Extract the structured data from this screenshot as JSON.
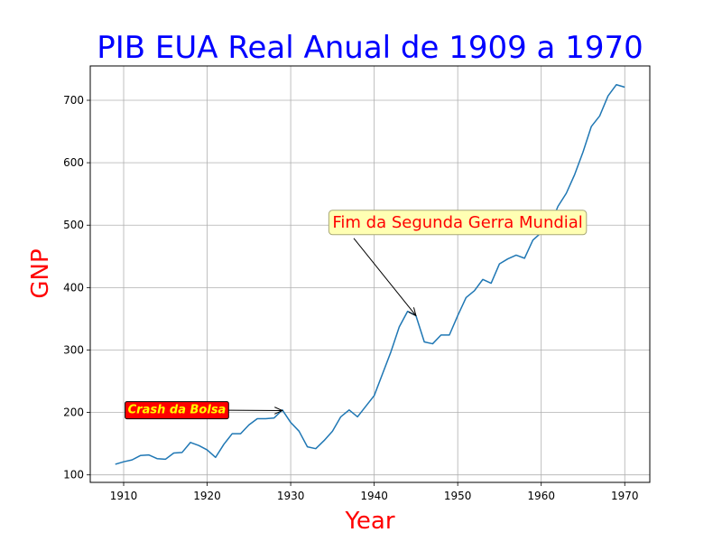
{
  "chart_data": {
    "type": "line",
    "title": "PIB EUA Real Anual de 1909 a 1970",
    "xlabel": "Year",
    "ylabel": "GNP",
    "xlim": [
      1906,
      1973
    ],
    "ylim": [
      88,
      755
    ],
    "grid": true,
    "xticks": [
      1910,
      1920,
      1930,
      1940,
      1950,
      1960,
      1970
    ],
    "yticks": [
      100,
      200,
      300,
      400,
      500,
      600,
      700
    ],
    "series": [
      {
        "color": "#1f77b4",
        "x": [
          1909,
          1910,
          1911,
          1912,
          1913,
          1914,
          1915,
          1916,
          1917,
          1918,
          1919,
          1920,
          1921,
          1922,
          1923,
          1924,
          1925,
          1926,
          1927,
          1928,
          1929,
          1930,
          1931,
          1932,
          1933,
          1934,
          1935,
          1936,
          1937,
          1938,
          1939,
          1940,
          1941,
          1942,
          1943,
          1944,
          1945,
          1946,
          1947,
          1948,
          1949,
          1950,
          1951,
          1952,
          1953,
          1954,
          1955,
          1956,
          1957,
          1958,
          1959,
          1960,
          1961,
          1962,
          1963,
          1964,
          1965,
          1966,
          1967,
          1968,
          1969,
          1970
        ],
        "y": [
          117,
          121,
          124,
          131,
          132,
          126,
          125,
          135,
          136,
          152,
          147,
          140,
          128,
          149,
          166,
          166,
          180,
          190,
          190,
          191,
          204,
          184,
          170,
          145,
          142,
          155,
          170,
          193,
          204,
          193,
          210,
          227,
          262,
          297,
          337,
          362,
          355,
          313,
          310,
          324,
          324,
          355,
          384,
          395,
          413,
          407,
          438,
          446,
          452,
          447,
          476,
          488,
          497,
          530,
          551,
          581,
          617,
          658,
          675,
          707,
          725,
          721
        ]
      }
    ],
    "annotations": [
      {
        "text": "Crash da Bolsa",
        "point": [
          1929,
          203
        ],
        "text_position": [
          1910.5,
          205
        ],
        "text_color": "#ffff00",
        "box_color": "#ff0000",
        "box_edge": "#000000"
      },
      {
        "text": "Fim da Segunda Gerra Mundial",
        "point": [
          1945,
          355
        ],
        "text_position": [
          1935,
          505
        ],
        "text_color": "#ff0000",
        "box_color": "#ffffb3",
        "box_edge": "#a8a878"
      }
    ],
    "colors": {
      "title": "#0000ff",
      "axis_labels": "#ff0000",
      "grid": "#b0b0b0",
      "line": "#1f77b4"
    }
  }
}
